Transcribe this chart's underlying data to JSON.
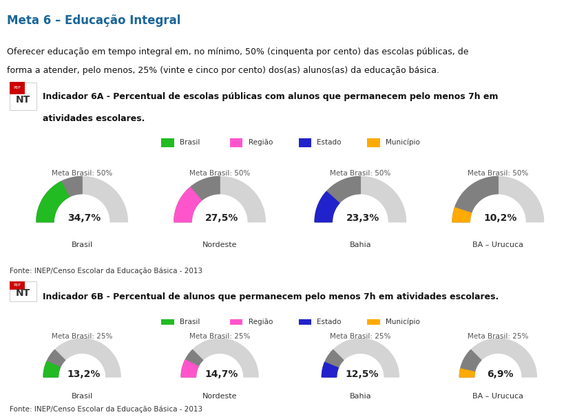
{
  "title": "Meta 6 – Educação Integral",
  "description_line1": "Oferecer educação em tempo integral em, no mínimo, 50% (cinquenta por cento) das escolas públicas, de",
  "description_line2": "forma a atender, pelo menos, 25% (vinte e cinco por cento) dos(as) alunos(as) da educação básica.",
  "indicator_6a_line1": "Indicador 6A - Percentual de escolas públicas com alunos que permanecem pelo menos 7h em",
  "indicator_6a_line2": "atividades escolares.",
  "indicator_6b_line1": "Indicador 6B - Percentual de alunos que permanecem pelo menos 7h em atividades escolares.",
  "fonte": "Fonte: INEP/Censo Escolar da Educação Básica - 2013",
  "legend_labels": [
    "Brasil",
    "Região",
    "Estado",
    "Município"
  ],
  "legend_colors": [
    "#22bb22",
    "#ff55cc",
    "#2222cc",
    "#ffaa00"
  ],
  "gauge_6a": [
    {
      "label": "Brasil",
      "value": 34.7,
      "meta": 50,
      "color": "#22bb22",
      "display": "34,7%"
    },
    {
      "label": "Nordeste",
      "value": 27.5,
      "meta": 50,
      "color": "#ff55cc",
      "display": "27,5%"
    },
    {
      "label": "Bahia",
      "value": 23.3,
      "meta": 50,
      "color": "#2222cc",
      "display": "23,3%"
    },
    {
      "label": "BA – Urucuca",
      "value": 10.2,
      "meta": 50,
      "color": "#ffaa00",
      "display": "10,2%"
    }
  ],
  "gauge_6b": [
    {
      "label": "Brasil",
      "value": 13.2,
      "meta": 25,
      "color": "#22bb22",
      "display": "13,2%"
    },
    {
      "label": "Nordeste",
      "value": 14.7,
      "meta": 25,
      "color": "#ff55cc",
      "display": "14,7%"
    },
    {
      "label": "Bahia",
      "value": 12.5,
      "meta": 25,
      "color": "#2222cc",
      "display": "12,5%"
    },
    {
      "label": "BA – Urucuca",
      "value": 6.9,
      "meta": 25,
      "color": "#ffaa00",
      "display": "6,9%"
    }
  ],
  "bg_color": "#ffffff",
  "panel_bg": "#f2f2f2",
  "title_color": "#1a6699",
  "header_bg": "#e0e0e0",
  "nt_bg": "#cc0000",
  "gauge_bg": "#d4d4d4",
  "gauge_dark": "#808080"
}
